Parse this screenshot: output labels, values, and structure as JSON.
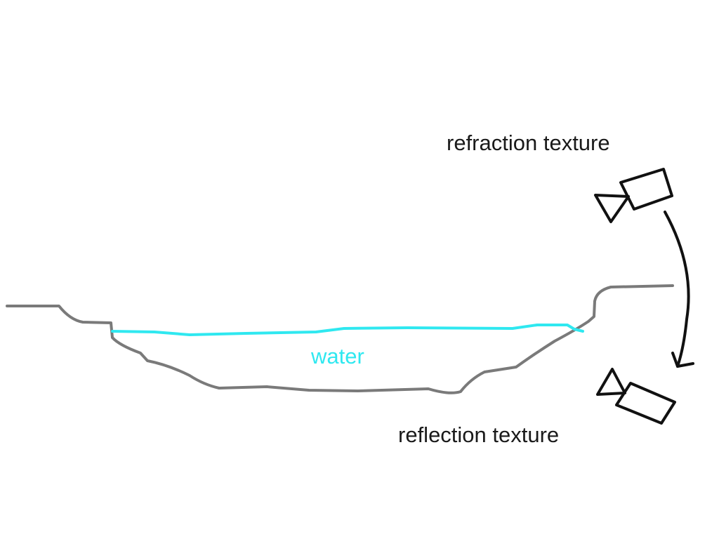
{
  "labels": {
    "refraction": "refraction texture",
    "reflection": "reflection texture",
    "water": "water"
  },
  "colors": {
    "terrain": "#7a7a7a",
    "water": "#2fe8f0",
    "ink": "#111111",
    "text": "#1a1a1a"
  },
  "icons": {
    "top_camera": "camera-icon",
    "bottom_camera": "camera-icon",
    "arrow": "curved-arrow-icon"
  }
}
